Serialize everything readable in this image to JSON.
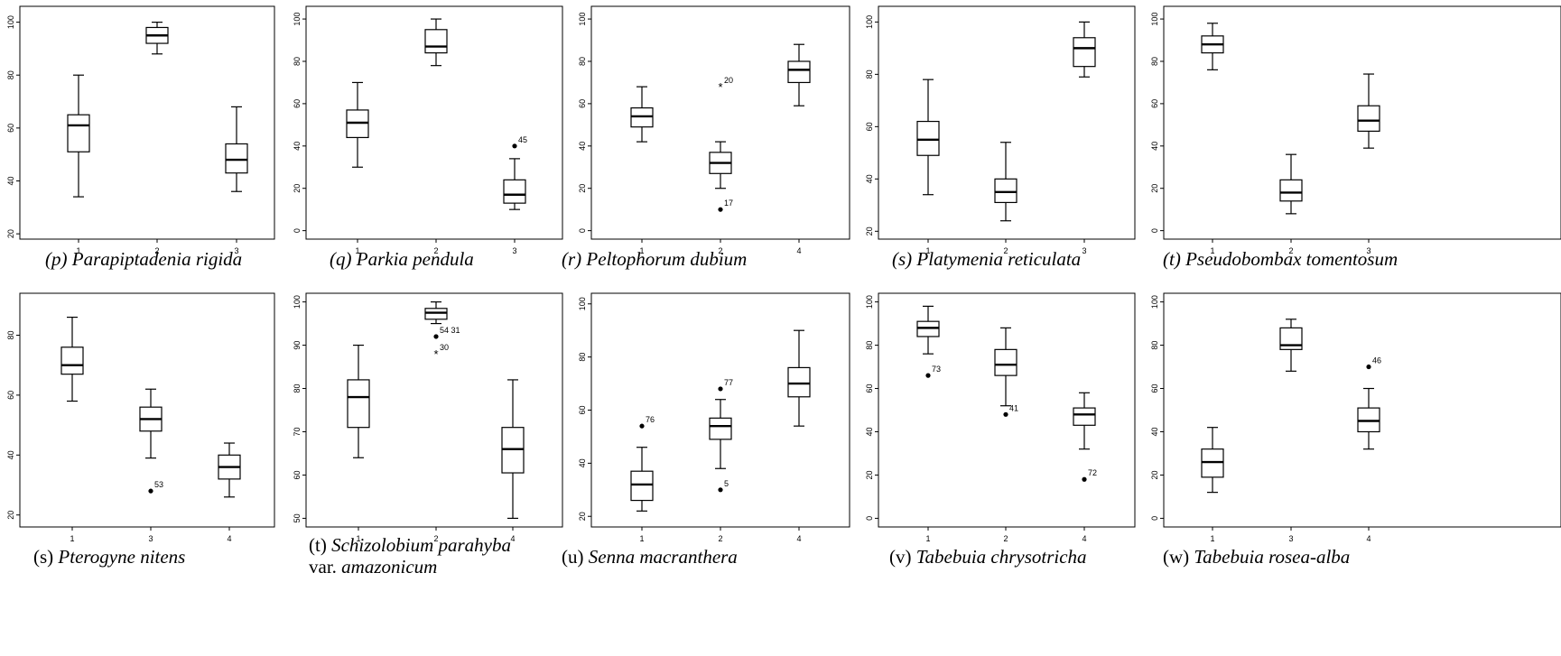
{
  "chart_data": [
    {
      "type": "boxplot",
      "caption": {
        "letter": "(p)",
        "italic_letter": true,
        "species": "Parapiptadenia rigida",
        "line2": "",
        "line2_italic": ""
      },
      "categories": [
        "1",
        "2",
        "3"
      ],
      "ylim": [
        18,
        106
      ],
      "yticks": [
        20,
        40,
        60,
        80,
        100
      ],
      "boxes": [
        {
          "lo": 34,
          "q1": 51,
          "median": 61,
          "q3": 65,
          "hi": 80
        },
        {
          "lo": 88,
          "q1": 92,
          "median": 95,
          "q3": 98,
          "hi": 100
        },
        {
          "lo": 36,
          "q1": 43,
          "median": 48,
          "q3": 54,
          "hi": 68
        }
      ],
      "outliers": []
    },
    {
      "type": "boxplot",
      "caption": {
        "letter": "(q)",
        "italic_letter": true,
        "species": "Parkia pendula",
        "line2": "",
        "line2_italic": ""
      },
      "categories": [
        "1",
        "2",
        "3"
      ],
      "ylim": [
        -4,
        106
      ],
      "yticks": [
        0,
        20,
        40,
        60,
        80,
        100
      ],
      "boxes": [
        {
          "lo": 30,
          "q1": 44,
          "median": 51,
          "q3": 57,
          "hi": 70
        },
        {
          "lo": 78,
          "q1": 84,
          "median": 87,
          "q3": 95,
          "hi": 100
        },
        {
          "lo": 10,
          "q1": 13,
          "median": 17,
          "q3": 24,
          "hi": 34
        }
      ],
      "outliers": [
        {
          "cat": 2,
          "value": 40,
          "label": "45",
          "symbol": "dot"
        }
      ]
    },
    {
      "type": "boxplot",
      "caption": {
        "letter": "(r)",
        "italic_letter": true,
        "species": "Peltophorum dubium",
        "line2": "",
        "line2_italic": ""
      },
      "categories": [
        "1",
        "2",
        "4"
      ],
      "ylim": [
        -4,
        106
      ],
      "yticks": [
        0,
        20,
        40,
        60,
        80,
        100
      ],
      "boxes": [
        {
          "lo": 42,
          "q1": 49,
          "median": 54,
          "q3": 58,
          "hi": 68
        },
        {
          "lo": 20,
          "q1": 27,
          "median": 32,
          "q3": 37,
          "hi": 42
        },
        {
          "lo": 59,
          "q1": 70,
          "median": 76,
          "q3": 80,
          "hi": 88
        }
      ],
      "outliers": [
        {
          "cat": 1,
          "value": 68,
          "label": "20",
          "symbol": "star"
        },
        {
          "cat": 1,
          "value": 10,
          "label": "17",
          "symbol": "dot"
        }
      ]
    },
    {
      "type": "boxplot",
      "caption": {
        "letter": "(s)",
        "italic_letter": true,
        "species": "Platymenia reticulata",
        "line2": "",
        "line2_italic": ""
      },
      "categories": [
        "1",
        "2",
        "3"
      ],
      "ylim": [
        17,
        106
      ],
      "yticks": [
        20,
        40,
        60,
        80,
        100
      ],
      "boxes": [
        {
          "lo": 34,
          "q1": 49,
          "median": 55,
          "q3": 62,
          "hi": 78
        },
        {
          "lo": 24,
          "q1": 31,
          "median": 35,
          "q3": 40,
          "hi": 54
        },
        {
          "lo": 79,
          "q1": 83,
          "median": 90,
          "q3": 94,
          "hi": 100
        }
      ],
      "outliers": []
    },
    {
      "type": "boxplot",
      "caption": {
        "letter": "(t)",
        "italic_letter": true,
        "species": "Pseudobombax tomentosum",
        "line2": "",
        "line2_italic": ""
      },
      "categories": [
        "1",
        "2",
        "3"
      ],
      "ylim": [
        -4,
        106
      ],
      "yticks": [
        0,
        20,
        40,
        60,
        80,
        100
      ],
      "boxes": [
        {
          "lo": 76,
          "q1": 84,
          "median": 88,
          "q3": 92,
          "hi": 98
        },
        {
          "lo": 8,
          "q1": 14,
          "median": 18,
          "q3": 24,
          "hi": 36
        },
        {
          "lo": 39,
          "q1": 47,
          "median": 52,
          "q3": 59,
          "hi": 74
        }
      ],
      "outliers": []
    },
    {
      "type": "boxplot",
      "caption": {
        "letter": "(s)",
        "italic_letter": false,
        "species": "Pterogyne nitens",
        "line2": "",
        "line2_italic": ""
      },
      "categories": [
        "1",
        "3",
        "4"
      ],
      "ylim": [
        16,
        94
      ],
      "yticks": [
        20,
        40,
        60,
        80
      ],
      "boxes": [
        {
          "lo": 58,
          "q1": 67,
          "median": 70,
          "q3": 76,
          "hi": 86
        },
        {
          "lo": 39,
          "q1": 48,
          "median": 52,
          "q3": 56,
          "hi": 62
        },
        {
          "lo": 26,
          "q1": 32,
          "median": 36,
          "q3": 40,
          "hi": 44
        }
      ],
      "outliers": [
        {
          "cat": 1,
          "value": 28,
          "label": "53",
          "symbol": "dot"
        }
      ]
    },
    {
      "type": "boxplot",
      "caption": {
        "letter": "(t)",
        "italic_letter": false,
        "species": "Schizolobium parahyba",
        "line2": "var.",
        "line2_italic": "amazonicum"
      },
      "categories": [
        "1",
        "2",
        "4"
      ],
      "ylim": [
        48,
        102
      ],
      "yticks": [
        50,
        60,
        70,
        80,
        90,
        100
      ],
      "boxes": [
        {
          "lo": 64,
          "q1": 71,
          "median": 78,
          "q3": 82,
          "hi": 90
        },
        {
          "lo": 95,
          "q1": 96,
          "median": 97.5,
          "q3": 98.5,
          "hi": 100
        },
        {
          "lo": 50,
          "q1": 60.5,
          "median": 66,
          "q3": 71,
          "hi": 82
        }
      ],
      "outliers": [
        {
          "cat": 1,
          "value": 92,
          "label": "54 31",
          "symbol": "dot"
        },
        {
          "cat": 1,
          "value": 88,
          "label": "30",
          "symbol": "star"
        }
      ]
    },
    {
      "type": "boxplot",
      "caption": {
        "letter": "(u)",
        "italic_letter": false,
        "species": "Senna macranthera",
        "line2": "",
        "line2_italic": ""
      },
      "categories": [
        "1",
        "2",
        "4"
      ],
      "ylim": [
        16,
        104
      ],
      "yticks": [
        20,
        40,
        60,
        80,
        100
      ],
      "boxes": [
        {
          "lo": 22,
          "q1": 26,
          "median": 32,
          "q3": 37,
          "hi": 46
        },
        {
          "lo": 38,
          "q1": 49,
          "median": 54,
          "q3": 57,
          "hi": 64
        },
        {
          "lo": 54,
          "q1": 65,
          "median": 70,
          "q3": 76,
          "hi": 90
        }
      ],
      "outliers": [
        {
          "cat": 0,
          "value": 54,
          "label": "76",
          "symbol": "dot"
        },
        {
          "cat": 1,
          "value": 68,
          "label": "77",
          "symbol": "dot"
        },
        {
          "cat": 1,
          "value": 30,
          "label": "5",
          "symbol": "dot"
        }
      ]
    },
    {
      "type": "boxplot",
      "caption": {
        "letter": "(v)",
        "italic_letter": false,
        "species": "Tabebuia chrysotricha",
        "line2": "",
        "line2_italic": ""
      },
      "categories": [
        "1",
        "2",
        "4"
      ],
      "ylim": [
        -4,
        104
      ],
      "yticks": [
        0,
        20,
        40,
        60,
        80,
        100
      ],
      "boxes": [
        {
          "lo": 76,
          "q1": 84,
          "median": 88,
          "q3": 91,
          "hi": 98
        },
        {
          "lo": 52,
          "q1": 66,
          "median": 71,
          "q3": 78,
          "hi": 88
        },
        {
          "lo": 32,
          "q1": 43,
          "median": 48,
          "q3": 51,
          "hi": 58
        }
      ],
      "outliers": [
        {
          "cat": 0,
          "value": 66,
          "label": "73",
          "symbol": "dot"
        },
        {
          "cat": 1,
          "value": 48,
          "label": "41",
          "symbol": "dot"
        },
        {
          "cat": 2,
          "value": 18,
          "label": "72",
          "symbol": "dot"
        }
      ]
    },
    {
      "type": "boxplot",
      "caption": {
        "letter": "(w)",
        "italic_letter": false,
        "species": "Tabebuia rosea-alba",
        "line2": "",
        "line2_italic": ""
      },
      "categories": [
        "1",
        "3",
        "4"
      ],
      "ylim": [
        -4,
        104
      ],
      "yticks": [
        0,
        20,
        40,
        60,
        80,
        100
      ],
      "boxes": [
        {
          "lo": 12,
          "q1": 19,
          "median": 26,
          "q3": 32,
          "hi": 42
        },
        {
          "lo": 68,
          "q1": 78,
          "median": 80,
          "q3": 88,
          "hi": 92
        },
        {
          "lo": 32,
          "q1": 40,
          "median": 45,
          "q3": 51,
          "hi": 60
        }
      ],
      "outliers": [
        {
          "cat": 2,
          "value": 70,
          "label": "46",
          "symbol": "dot"
        }
      ]
    }
  ]
}
